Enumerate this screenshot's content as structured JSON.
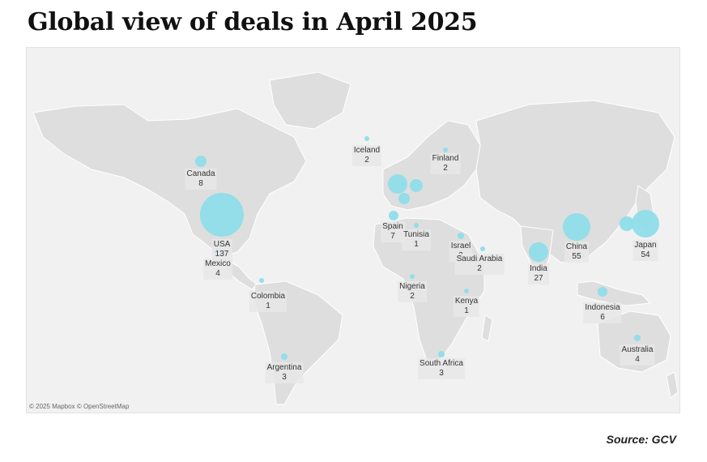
{
  "title": "Global view of deals in April 2025",
  "attribution": "© 2025 Mapbox © OpenStreetMap",
  "source": "Source: GCV",
  "bubble_color": "#8edde8",
  "land_color": "#dedede",
  "countries": [
    {
      "name": "Canada",
      "deals": "8"
    },
    {
      "name": "USA",
      "deals": "137"
    },
    {
      "name": "Mexico",
      "deals": "4"
    },
    {
      "name": "Colombia",
      "deals": "1"
    },
    {
      "name": "Argentina",
      "deals": "3"
    },
    {
      "name": "Iceland",
      "deals": "2"
    },
    {
      "name": "Finland",
      "deals": "2"
    },
    {
      "name": "Spain",
      "deals": "7"
    },
    {
      "name": "Tunisia",
      "deals": "1"
    },
    {
      "name": "Israel",
      "deals": "3"
    },
    {
      "name": "Saudi Arabia",
      "deals": "2"
    },
    {
      "name": "Nigeria",
      "deals": "2"
    },
    {
      "name": "Kenya",
      "deals": "1"
    },
    {
      "name": "South Africa",
      "deals": "3"
    },
    {
      "name": "India",
      "deals": "27"
    },
    {
      "name": "China",
      "deals": "55"
    },
    {
      "name": "Japan",
      "deals": "54"
    },
    {
      "name": "Indonesia",
      "deals": "6"
    },
    {
      "name": "Australia",
      "deals": "4"
    }
  ]
}
